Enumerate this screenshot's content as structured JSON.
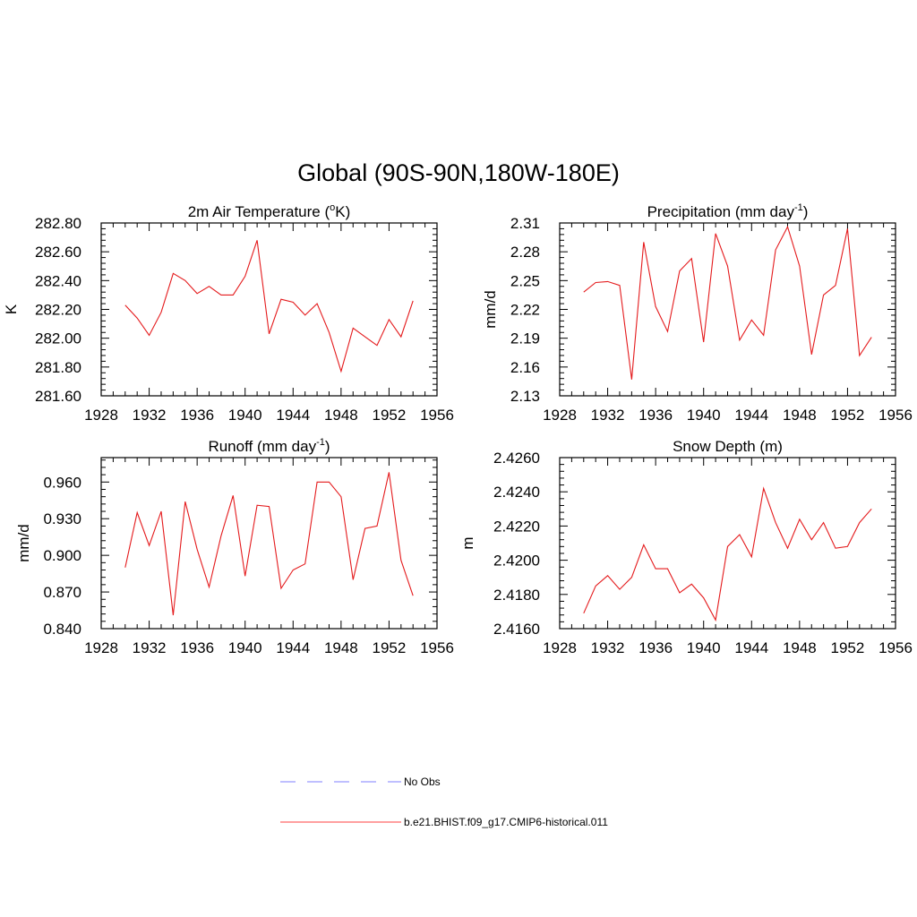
{
  "title": "Global (90S-90N,180W-180E)",
  "colors": {
    "model": "#e41a1c",
    "obs": "#9999ff"
  },
  "legend": [
    {
      "label": "No Obs",
      "style": "dashed",
      "color": "#9999ff"
    },
    {
      "label": "b.e21.BHIST.f09_g17.CMIP6-historical.011",
      "style": "solid",
      "color": "#ff6666"
    }
  ],
  "chart_data": [
    {
      "type": "line",
      "title_main": "2m Air Temperature (",
      "title_sup": "o",
      "title_tail": "K)",
      "ylabel": "K",
      "xlim": [
        1928,
        1956
      ],
      "xticks": [
        1928,
        1932,
        1936,
        1940,
        1944,
        1948,
        1952,
        1956
      ],
      "ylim": [
        281.6,
        282.8
      ],
      "yticks": [
        281.6,
        281.8,
        282.0,
        282.2,
        282.4,
        282.6,
        282.8
      ],
      "ytick_labels": [
        "281.60",
        "281.80",
        "282.00",
        "282.20",
        "282.40",
        "282.60",
        "282.80"
      ],
      "x": [
        1930,
        1931,
        1932,
        1933,
        1934,
        1935,
        1936,
        1937,
        1938,
        1939,
        1940,
        1941,
        1942,
        1943,
        1944,
        1945,
        1946,
        1947,
        1948,
        1949,
        1950,
        1951,
        1952,
        1953,
        1954
      ],
      "series": [
        {
          "values": [
            282.23,
            282.14,
            282.02,
            282.18,
            282.45,
            282.4,
            282.31,
            282.36,
            282.3,
            282.3,
            282.43,
            282.68,
            282.03,
            282.27,
            282.25,
            282.16,
            282.24,
            282.04,
            281.77,
            282.07,
            282.01,
            281.95,
            282.13,
            282.01,
            282.26
          ]
        }
      ]
    },
    {
      "type": "line",
      "title_main": "Precipitation (mm day",
      "title_sup": "-1",
      "title_tail": ")",
      "ylabel": "mm/d",
      "xlim": [
        1928,
        1956
      ],
      "xticks": [
        1928,
        1932,
        1936,
        1940,
        1944,
        1948,
        1952,
        1956
      ],
      "ylim": [
        2.13,
        2.31
      ],
      "yticks": [
        2.13,
        2.16,
        2.19,
        2.22,
        2.25,
        2.28,
        2.31
      ],
      "ytick_labels": [
        "2.13",
        "2.16",
        "2.19",
        "2.22",
        "2.25",
        "2.28",
        "2.31"
      ],
      "x": [
        1930,
        1931,
        1932,
        1933,
        1934,
        1935,
        1936,
        1937,
        1938,
        1939,
        1940,
        1941,
        1942,
        1943,
        1944,
        1945,
        1946,
        1947,
        1948,
        1949,
        1950,
        1951,
        1952,
        1953,
        1954
      ],
      "series": [
        {
          "values": [
            2.238,
            2.248,
            2.249,
            2.245,
            2.147,
            2.29,
            2.223,
            2.197,
            2.26,
            2.273,
            2.186,
            2.299,
            2.265,
            2.188,
            2.209,
            2.193,
            2.282,
            2.306,
            2.265,
            2.173,
            2.235,
            2.245,
            2.304,
            2.172,
            2.191
          ]
        }
      ]
    },
    {
      "type": "line",
      "title_main": "Runoff (mm day",
      "title_sup": "-1",
      "title_tail": ")",
      "ylabel": "mm/d",
      "xlim": [
        1928,
        1956
      ],
      "xticks": [
        1928,
        1932,
        1936,
        1940,
        1944,
        1948,
        1952,
        1956
      ],
      "ylim": [
        0.84,
        0.98
      ],
      "yticks": [
        0.84,
        0.87,
        0.9,
        0.93,
        0.96
      ],
      "ytick_labels": [
        "0.840",
        "0.870",
        "0.900",
        "0.930",
        "0.960"
      ],
      "x": [
        1930,
        1931,
        1932,
        1933,
        1934,
        1935,
        1936,
        1937,
        1938,
        1939,
        1940,
        1941,
        1942,
        1943,
        1944,
        1945,
        1946,
        1947,
        1948,
        1949,
        1950,
        1951,
        1952,
        1953,
        1954
      ],
      "series": [
        {
          "values": [
            0.89,
            0.935,
            0.908,
            0.936,
            0.851,
            0.944,
            0.905,
            0.874,
            0.916,
            0.949,
            0.883,
            0.941,
            0.94,
            0.873,
            0.888,
            0.893,
            0.96,
            0.96,
            0.948,
            0.88,
            0.922,
            0.924,
            0.968,
            0.896,
            0.867
          ]
        }
      ]
    },
    {
      "type": "line",
      "title_main": "Snow Depth (m)",
      "title_sup": "",
      "title_tail": "",
      "ylabel": "m",
      "xlim": [
        1928,
        1956
      ],
      "xticks": [
        1928,
        1932,
        1936,
        1940,
        1944,
        1948,
        1952,
        1956
      ],
      "ylim": [
        2.416,
        2.426
      ],
      "yticks": [
        2.416,
        2.418,
        2.42,
        2.422,
        2.424,
        2.426
      ],
      "ytick_labels": [
        "2.4160",
        "2.4180",
        "2.4200",
        "2.4220",
        "2.4240",
        "2.4260"
      ],
      "x": [
        1930,
        1931,
        1932,
        1933,
        1934,
        1935,
        1936,
        1937,
        1938,
        1939,
        1940,
        1941,
        1942,
        1943,
        1944,
        1945,
        1946,
        1947,
        1948,
        1949,
        1950,
        1951,
        1952,
        1953,
        1954
      ],
      "series": [
        {
          "values": [
            2.4169,
            2.4185,
            2.4191,
            2.4183,
            2.419,
            2.4209,
            2.4195,
            2.4195,
            2.4181,
            2.4186,
            2.4178,
            2.4165,
            2.4208,
            2.4215,
            2.4202,
            2.4242,
            2.4222,
            2.4207,
            2.4224,
            2.4212,
            2.4222,
            2.4207,
            2.4208,
            2.4222,
            2.423
          ]
        }
      ]
    }
  ]
}
